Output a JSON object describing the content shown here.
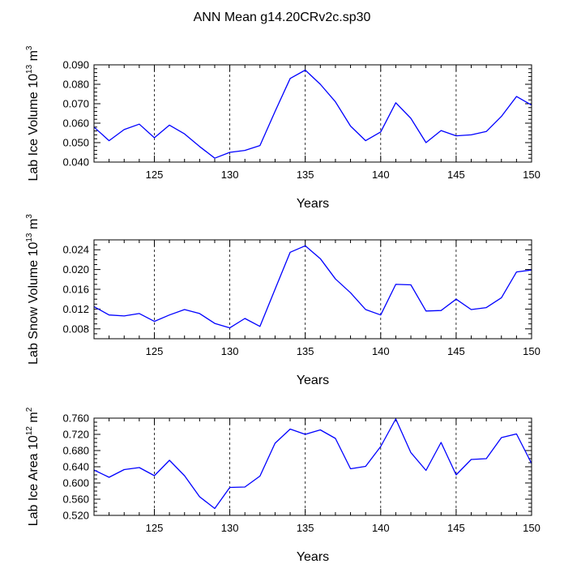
{
  "colors": {
    "line": "#0000ff",
    "axis": "#000000",
    "background": "#ffffff"
  },
  "chart_data": {
    "type": "line",
    "title": "ANN Mean g14.20CRv2c.sp30",
    "panels": [
      {
        "name": "lab-ice-volume",
        "ylabel": "Lab Ice Volume 10",
        "ylabel_exp": "13",
        "ylabel_unit": " m",
        "ylabel_unit_exp": "3",
        "xlabel": "Years",
        "xlim": [
          121,
          150
        ],
        "ylim": [
          0.04,
          0.09
        ],
        "yticks": [
          0.04,
          0.05,
          0.06,
          0.07,
          0.08,
          0.09
        ],
        "ytick_labels": [
          "0.040",
          "0.050",
          "0.060",
          "0.070",
          "0.080",
          "0.090"
        ],
        "yminor": [
          0.042,
          0.044,
          0.046,
          0.048,
          0.052,
          0.054,
          0.056,
          0.058,
          0.062,
          0.064,
          0.066,
          0.068,
          0.072,
          0.074,
          0.076,
          0.078,
          0.082,
          0.084,
          0.086,
          0.088
        ],
        "xticks": [
          125,
          130,
          135,
          140,
          145,
          150
        ],
        "xtick_labels": [
          "125",
          "130",
          "135",
          "140",
          "145",
          "150"
        ],
        "gridlines_x": [
          125,
          130,
          135,
          140,
          145
        ],
        "x": [
          121,
          122,
          123,
          124,
          125,
          126,
          127,
          128,
          129,
          130,
          131,
          132,
          133,
          134,
          135,
          136,
          137,
          138,
          139,
          140,
          141,
          142,
          143,
          144,
          145,
          146,
          147,
          148,
          149,
          150
        ],
        "y": [
          0.058,
          0.051,
          0.0567,
          0.0595,
          0.0525,
          0.059,
          0.0545,
          0.048,
          0.042,
          0.045,
          0.046,
          0.0485,
          0.066,
          0.083,
          0.0873,
          0.08,
          0.071,
          0.0585,
          0.051,
          0.0555,
          0.0705,
          0.0625,
          0.05,
          0.0562,
          0.0535,
          0.054,
          0.0557,
          0.0635,
          0.0737,
          0.0693
        ]
      },
      {
        "name": "lab-snow-volume",
        "ylabel": "Lab Snow Volume 10",
        "ylabel_exp": "13",
        "ylabel_unit": " m",
        "ylabel_unit_exp": "3",
        "xlabel": "Years",
        "xlim": [
          121,
          150
        ],
        "ylim": [
          0.006,
          0.026
        ],
        "yticks": [
          0.008,
          0.012,
          0.016,
          0.02,
          0.024
        ],
        "ytick_labels": [
          "0.008",
          "0.012",
          "0.016",
          "0.020",
          "0.024"
        ],
        "yminor": [
          0.006,
          0.007,
          0.009,
          0.01,
          0.011,
          0.013,
          0.014,
          0.015,
          0.017,
          0.018,
          0.019,
          0.021,
          0.022,
          0.023,
          0.025,
          0.026
        ],
        "xticks": [
          125,
          130,
          135,
          140,
          145,
          150
        ],
        "xtick_labels": [
          "125",
          "130",
          "135",
          "140",
          "145",
          "150"
        ],
        "gridlines_x": [
          125,
          130,
          135,
          140,
          145
        ],
        "x": [
          121,
          122,
          123,
          124,
          125,
          126,
          127,
          128,
          129,
          130,
          131,
          132,
          133,
          134,
          135,
          136,
          137,
          138,
          139,
          140,
          141,
          142,
          143,
          144,
          145,
          146,
          147,
          148,
          149,
          150
        ],
        "y": [
          0.0125,
          0.0108,
          0.0106,
          0.0111,
          0.0095,
          0.0108,
          0.0119,
          0.0111,
          0.0091,
          0.0082,
          0.0101,
          0.0085,
          0.016,
          0.0235,
          0.0248,
          0.0222,
          0.0181,
          0.0153,
          0.0119,
          0.0108,
          0.017,
          0.0169,
          0.0116,
          0.0117,
          0.014,
          0.0119,
          0.0123,
          0.0143,
          0.0195,
          0.0199
        ]
      },
      {
        "name": "lab-ice-area",
        "ylabel": "Lab Ice Area 10",
        "ylabel_exp": "12",
        "ylabel_unit": " m",
        "ylabel_unit_exp": "2",
        "xlabel": "Years",
        "xlim": [
          121,
          150
        ],
        "ylim": [
          0.52,
          0.76
        ],
        "yticks": [
          0.52,
          0.56,
          0.6,
          0.64,
          0.68,
          0.72,
          0.76
        ],
        "ytick_labels": [
          "0.520",
          "0.560",
          "0.600",
          "0.640",
          "0.680",
          "0.720",
          "0.760"
        ],
        "yminor": [
          0.53,
          0.54,
          0.55,
          0.57,
          0.58,
          0.59,
          0.61,
          0.62,
          0.63,
          0.65,
          0.66,
          0.67,
          0.69,
          0.7,
          0.71,
          0.73,
          0.74,
          0.75
        ],
        "xticks": [
          125,
          130,
          135,
          140,
          145,
          150
        ],
        "xtick_labels": [
          "125",
          "130",
          "135",
          "140",
          "145",
          "150"
        ],
        "gridlines_x": [
          125,
          130,
          135,
          140,
          145
        ],
        "x": [
          121,
          122,
          123,
          124,
          125,
          126,
          127,
          128,
          129,
          130,
          131,
          132,
          133,
          134,
          135,
          136,
          137,
          138,
          139,
          140,
          141,
          142,
          143,
          144,
          145,
          146,
          147,
          148,
          149,
          150
        ],
        "y": [
          0.632,
          0.614,
          0.633,
          0.638,
          0.618,
          0.656,
          0.618,
          0.566,
          0.537,
          0.589,
          0.59,
          0.617,
          0.698,
          0.733,
          0.72,
          0.731,
          0.71,
          0.635,
          0.641,
          0.69,
          0.758,
          0.675,
          0.631,
          0.7,
          0.62,
          0.658,
          0.66,
          0.712,
          0.721,
          0.648
        ]
      }
    ]
  }
}
